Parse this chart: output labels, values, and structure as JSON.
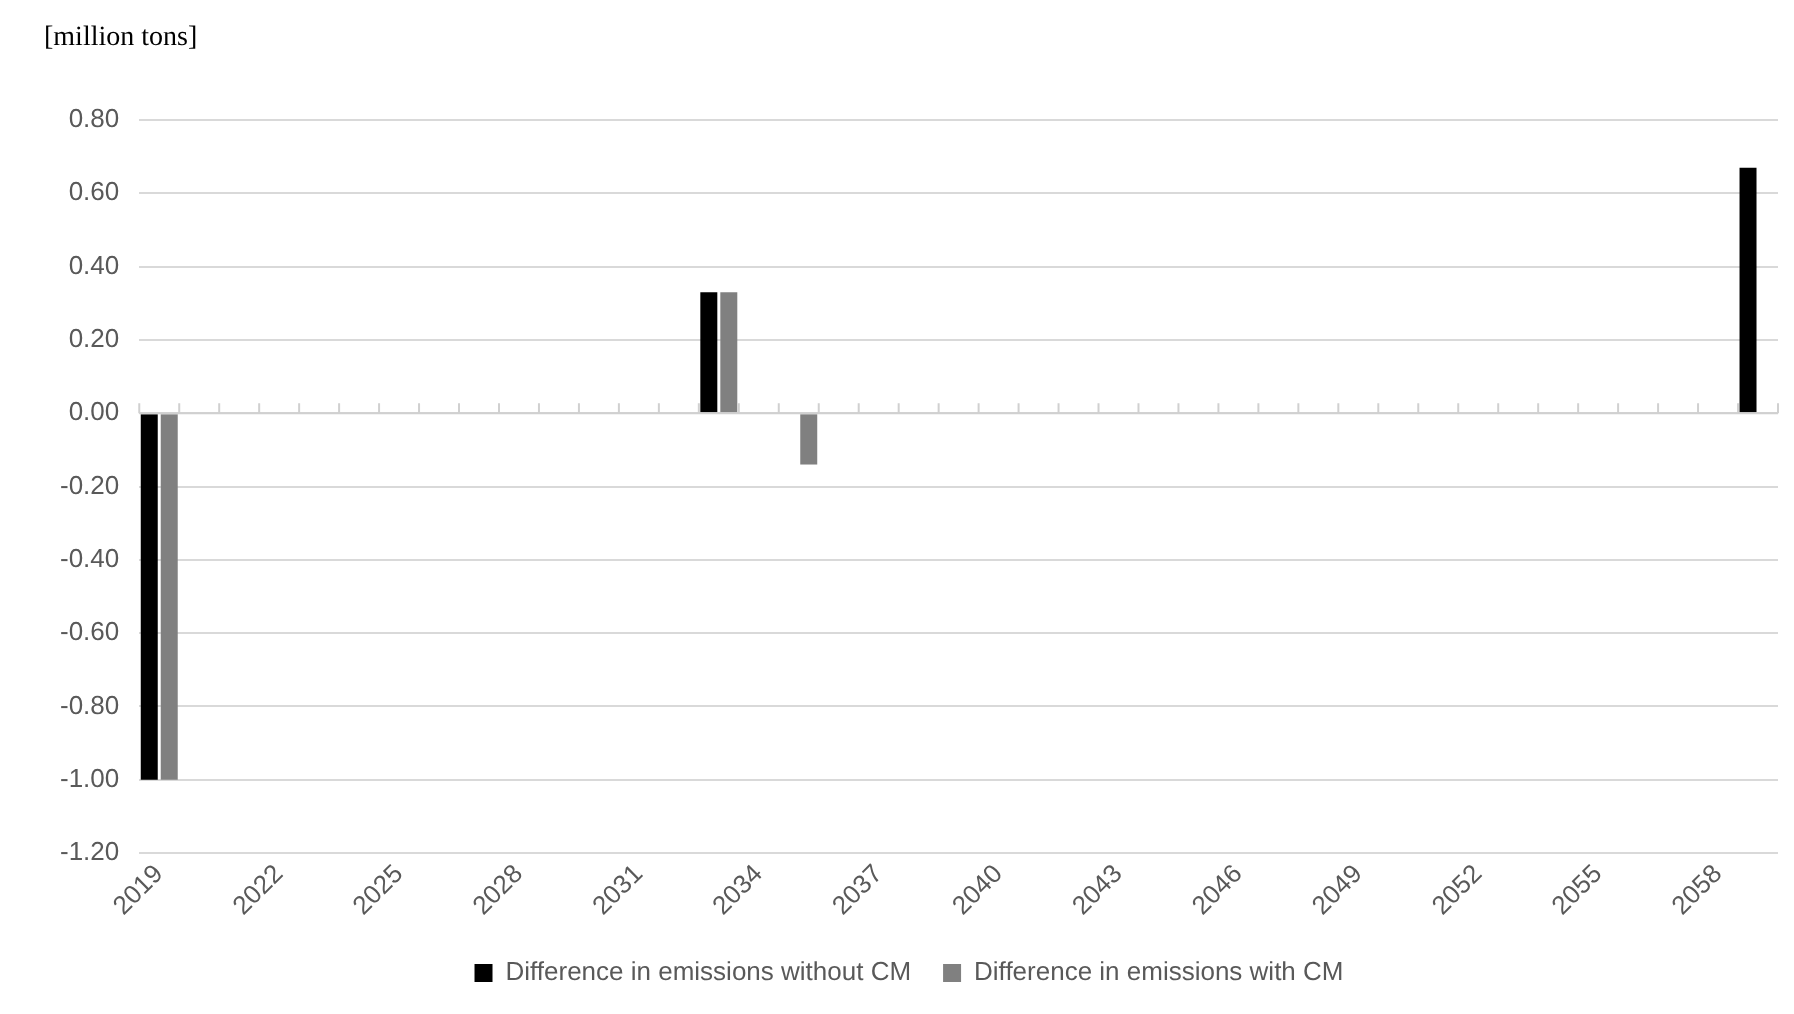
{
  "chart_data": {
    "type": "bar",
    "ylabel": "[million tons]",
    "categories": [
      "2019",
      null,
      null,
      "2022",
      null,
      null,
      "2025",
      null,
      null,
      "2028",
      null,
      null,
      "2031",
      null,
      null,
      "2034",
      null,
      null,
      "2037",
      null,
      null,
      "2040",
      null,
      null,
      "2043",
      null,
      null,
      "2046",
      null,
      null,
      "2049",
      null,
      null,
      "2052",
      null,
      null,
      "2055",
      null,
      null,
      "2058",
      null
    ],
    "series": [
      {
        "name": "Difference in emissions without CM",
        "color": "#000000",
        "values": [
          -1.0,
          0,
          0,
          0,
          0,
          0,
          0,
          0,
          0,
          0,
          0,
          0,
          0,
          0,
          0.33,
          0,
          0,
          0,
          0,
          0,
          0,
          0,
          0,
          0,
          0,
          0,
          0,
          0,
          0,
          0,
          0,
          0,
          0,
          0,
          0,
          0,
          0,
          0,
          0,
          0,
          0.67
        ]
      },
      {
        "name": "Difference in emissions with CM",
        "color": "#808080",
        "values": [
          -1.0,
          0,
          0,
          0,
          0,
          0,
          0,
          0,
          0,
          0,
          0,
          0,
          0,
          0,
          0.33,
          0,
          -0.14,
          0,
          0,
          0,
          0,
          0,
          0,
          0,
          0,
          0,
          0,
          0,
          0,
          0,
          0,
          0,
          0,
          0,
          0,
          0,
          0,
          0,
          0,
          0,
          0
        ]
      }
    ],
    "ylim": [
      -1.2,
      0.8
    ],
    "yticks": [
      {
        "value": -1.2,
        "label": "-1.20"
      },
      {
        "value": -1,
        "label": "-1.00"
      },
      {
        "value": -0.8,
        "label": "-0.80"
      },
      {
        "value": -0.6,
        "label": "-0.60"
      },
      {
        "value": -0.4,
        "label": "-0.40"
      },
      {
        "value": -0.2,
        "label": "-0.20"
      },
      {
        "value": 0,
        "label": "0.00"
      },
      {
        "value": 0.2,
        "label": "0.20"
      },
      {
        "value": 0.4,
        "label": "0.40"
      },
      {
        "value": 0.6,
        "label": "0.60"
      },
      {
        "value": 0.8,
        "label": "0.80"
      }
    ],
    "grid": "y",
    "legend": "bottom"
  }
}
